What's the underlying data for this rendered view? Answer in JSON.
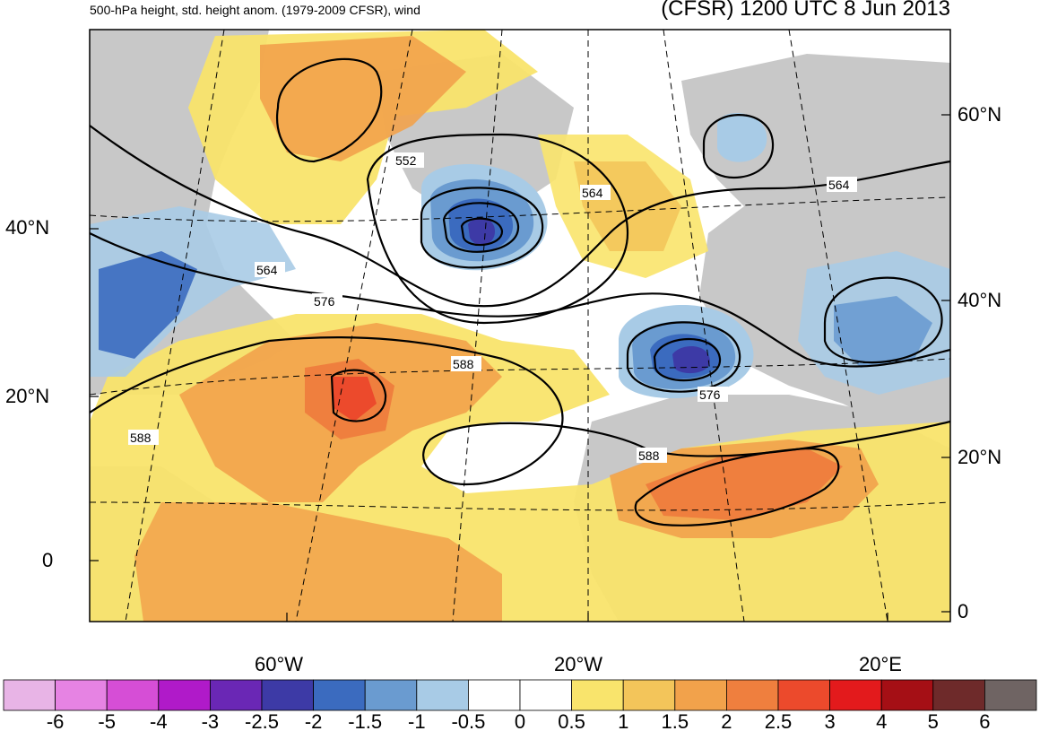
{
  "header": {
    "subtitle": "500-hPa height, std. height anom. (1979-2009 CFSR), wind",
    "title": "(CFSR) 1200 UTC 8 Jun 2013"
  },
  "axes": {
    "left_lat": [
      "40°N",
      "20°N",
      "0"
    ],
    "right_lat": [
      "60°N",
      "40°N",
      "20°N",
      "0"
    ],
    "lon": [
      "60°W",
      "20°W",
      "20°E"
    ]
  },
  "contours": [
    "552",
    "564",
    "564",
    "564",
    "576",
    "576",
    "588",
    "588",
    "588"
  ],
  "colorbar": {
    "labels": [
      "-6",
      "-5",
      "-4",
      "-3",
      "-2.5",
      "-2",
      "-1.5",
      "-1",
      "-0.5",
      "0",
      "0.5",
      "1",
      "1.5",
      "2",
      "2.5",
      "3",
      "4",
      "5",
      "6"
    ],
    "colors": [
      "#e8b4e6",
      "#e683e3",
      "#d64ed6",
      "#b01ac9",
      "#6a27b5",
      "#3d3aa6",
      "#3b6bbf",
      "#6a9bd0",
      "#a8cbe6",
      "#ffffff",
      "#ffffff",
      "#f9e46c",
      "#f3c55a",
      "#f2a24b",
      "#ef7f3e",
      "#ec4a2c",
      "#e31a1c",
      "#a50f15",
      "#6e2a2a",
      "#6f6463"
    ]
  },
  "colors": {
    "land": "#c8c8c8",
    "ocean": "#ffffff",
    "contour": "#000000"
  }
}
